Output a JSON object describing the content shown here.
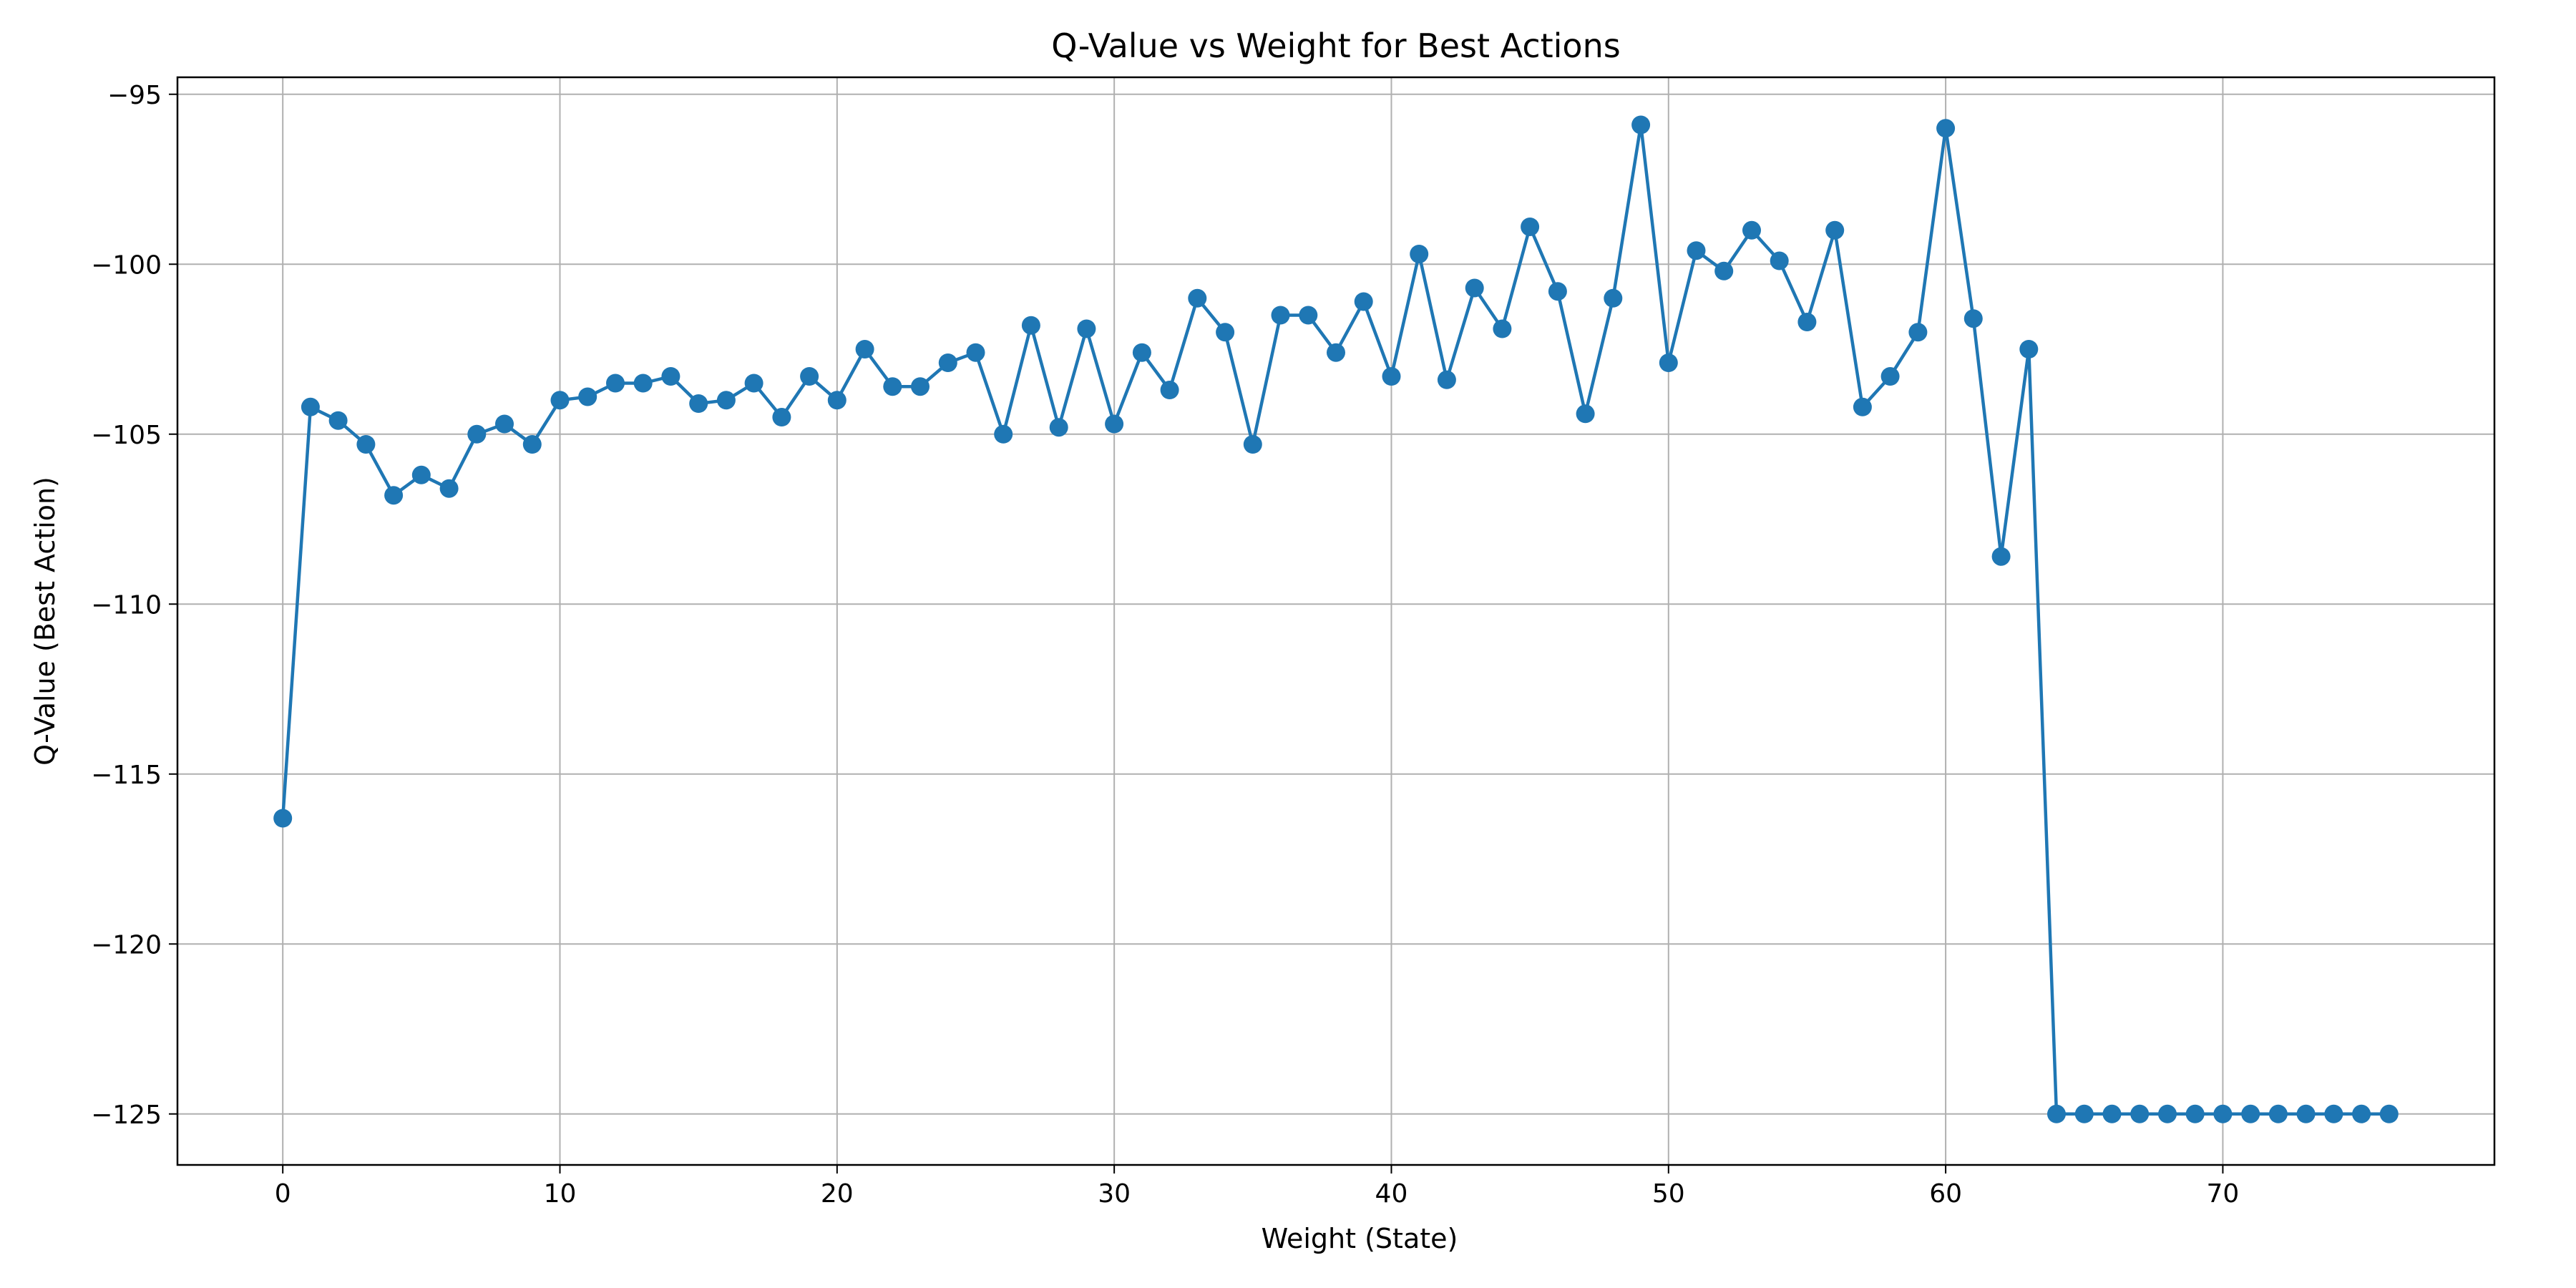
{
  "chart_data": {
    "type": "line",
    "title": "Q-Value vs Weight for Best Actions",
    "xlabel": "Weight (State)",
    "ylabel": "Q-Value (Best Action)",
    "xlim": [
      -3.8,
      79.8
    ],
    "ylim": [
      -126.5,
      -94.5
    ],
    "xticks": [
      0,
      10,
      20,
      30,
      40,
      50,
      60,
      70
    ],
    "yticks": [
      -95,
      -100,
      -105,
      -110,
      -115,
      -120,
      -125
    ],
    "xtick_labels": [
      "0",
      "10",
      "20",
      "30",
      "40",
      "50",
      "60",
      "70"
    ],
    "ytick_labels": [
      "−95",
      "−100",
      "−105",
      "−110",
      "−115",
      "−120",
      "−125"
    ],
    "grid": true,
    "line_color": "#1f77b4",
    "marker": "circle",
    "series": [
      {
        "x": [
          0,
          1,
          2,
          3,
          4,
          5,
          6,
          7,
          8,
          9,
          10,
          11,
          12,
          13,
          14,
          15,
          16,
          17,
          18,
          19,
          20,
          21,
          22,
          23,
          24,
          25,
          26,
          27,
          28,
          29,
          30,
          31,
          32,
          33,
          34,
          35,
          36,
          37,
          38,
          39,
          40,
          41,
          42,
          43,
          44,
          45,
          46,
          47,
          48,
          49,
          50,
          51,
          52,
          53,
          54,
          55,
          56,
          57,
          58,
          59,
          60,
          61,
          62,
          63,
          64,
          65,
          66,
          67,
          68,
          69,
          70,
          71,
          72,
          73,
          74,
          75,
          76
        ],
        "y": [
          -116.3,
          -104.2,
          -104.6,
          -105.3,
          -106.8,
          -106.2,
          -106.6,
          -105.0,
          -104.7,
          -105.3,
          -104.0,
          -103.9,
          -103.5,
          -103.5,
          -103.3,
          -104.1,
          -104.0,
          -103.5,
          -104.5,
          -103.3,
          -104.0,
          -102.5,
          -103.6,
          -103.6,
          -102.9,
          -102.6,
          -105.0,
          -101.8,
          -104.8,
          -101.9,
          -104.7,
          -102.6,
          -103.7,
          -101.0,
          -102.0,
          -105.3,
          -101.5,
          -101.5,
          -102.6,
          -101.1,
          -103.3,
          -99.7,
          -103.4,
          -100.7,
          -101.9,
          -98.9,
          -100.8,
          -104.4,
          -101.0,
          -95.9,
          -102.9,
          -99.6,
          -100.2,
          -99.0,
          -99.9,
          -101.7,
          -99.0,
          -104.2,
          -103.3,
          -102.0,
          -96.0,
          -101.6,
          -108.6,
          -102.5,
          -125.0,
          -125.0,
          -125.0,
          -125.0,
          -125.0,
          -125.0,
          -125.0,
          -125.0,
          -125.0,
          -125.0,
          -125.0,
          -125.0,
          -125.0
        ]
      }
    ]
  }
}
